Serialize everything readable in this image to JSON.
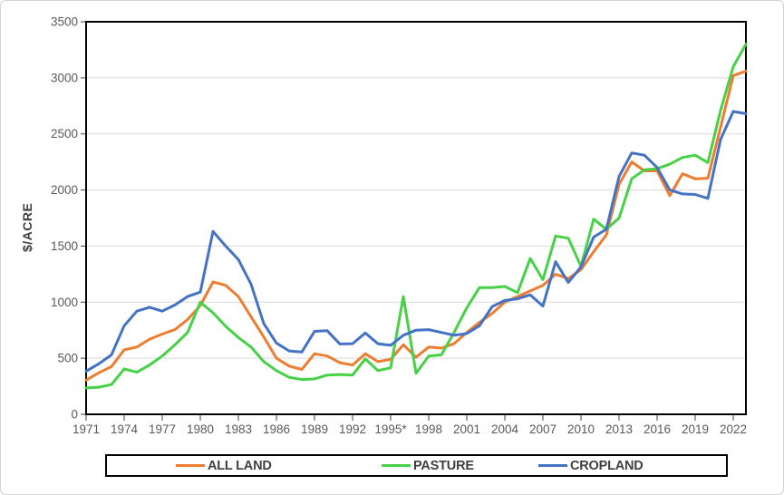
{
  "figure": {
    "background": "#ffffff",
    "border_color": "#d4d4d4"
  },
  "y_axis": {
    "title": "$/ACRE",
    "tick_labels": [
      "0",
      "500",
      "1000",
      "1500",
      "2000",
      "2500",
      "3000",
      "3500"
    ],
    "tick_values": [
      0,
      500,
      1000,
      1500,
      2000,
      2500,
      3000,
      3500
    ],
    "label_color": "#595959"
  },
  "x_axis": {
    "tick_labels": [
      "1971",
      "1974",
      "1977",
      "1980",
      "1983",
      "1986",
      "1989",
      "1992",
      "1995*",
      "1998",
      "2001",
      "2004",
      "2007",
      "2010",
      "2013",
      "2016",
      "2019",
      "2022"
    ],
    "tick_years": [
      1971,
      1974,
      1977,
      1980,
      1983,
      1986,
      1989,
      1992,
      1995,
      1998,
      2001,
      2004,
      2007,
      2010,
      2013,
      2016,
      2019,
      2022
    ],
    "label_color": "#595959"
  },
  "legend": {
    "items": [
      {
        "label": "ALL LAND",
        "color": "#ED7D31"
      },
      {
        "label": "PASTURE",
        "color": "#46D146"
      },
      {
        "label": "CROPLAND",
        "color": "#4472C4"
      }
    ]
  },
  "chart_data": {
    "type": "line",
    "title": "",
    "xlabel": "",
    "ylabel": "$/ACRE",
    "ylim": [
      0,
      3500
    ],
    "grid": "horizontal",
    "gridline_color": "#D9D9D9",
    "plot_border_color": "#000000",
    "legend_position": "bottom",
    "x": [
      1971,
      1972,
      1973,
      1974,
      1975,
      1976,
      1977,
      1978,
      1979,
      1980,
      1981,
      1982,
      1983,
      1984,
      1985,
      1986,
      1987,
      1988,
      1989,
      1990,
      1991,
      1992,
      1993,
      1994,
      1995,
      1996,
      1997,
      1998,
      1999,
      2000,
      2001,
      2002,
      2003,
      2004,
      2005,
      2006,
      2007,
      2008,
      2009,
      2010,
      2011,
      2012,
      2013,
      2014,
      2015,
      2016,
      2017,
      2018,
      2019,
      2020,
      2021,
      2022,
      2023
    ],
    "series": [
      {
        "name": "ALL LAND",
        "color": "#ED7D31",
        "values": [
          305,
          370,
          425,
          575,
          600,
          670,
          715,
          755,
          845,
          970,
          1180,
          1150,
          1050,
          870,
          690,
          500,
          430,
          400,
          540,
          520,
          460,
          440,
          540,
          470,
          490,
          620,
          510,
          600,
          590,
          630,
          730,
          820,
          900,
          1000,
          1050,
          1100,
          1150,
          1250,
          1210,
          1290,
          1450,
          1600,
          2050,
          2250,
          2170,
          2170,
          1950,
          2145,
          2100,
          2105,
          2560,
          3020,
          3060
        ]
      },
      {
        "name": "PASTURE",
        "color": "#46D146",
        "values": [
          235,
          242,
          265,
          405,
          375,
          440,
          520,
          620,
          730,
          1000,
          905,
          785,
          685,
          600,
          470,
          390,
          330,
          310,
          315,
          350,
          355,
          350,
          495,
          390,
          415,
          1050,
          365,
          520,
          530,
          730,
          950,
          1130,
          1130,
          1140,
          1085,
          1390,
          1200,
          1590,
          1570,
          1320,
          1740,
          1650,
          1750,
          2100,
          2180,
          2190,
          2230,
          2290,
          2310,
          2245,
          2710,
          3100,
          3300
        ]
      },
      {
        "name": "CROPLAND",
        "color": "#4472C4",
        "values": [
          385,
          450,
          530,
          790,
          920,
          955,
          920,
          975,
          1050,
          1090,
          1630,
          1500,
          1380,
          1160,
          810,
          635,
          565,
          555,
          740,
          745,
          627,
          630,
          725,
          630,
          615,
          705,
          750,
          755,
          730,
          705,
          720,
          790,
          960,
          1015,
          1030,
          1065,
          965,
          1360,
          1175,
          1315,
          1580,
          1650,
          2120,
          2330,
          2310,
          2200,
          2000,
          1965,
          1960,
          1925,
          2450,
          2700,
          2680
        ]
      }
    ]
  }
}
